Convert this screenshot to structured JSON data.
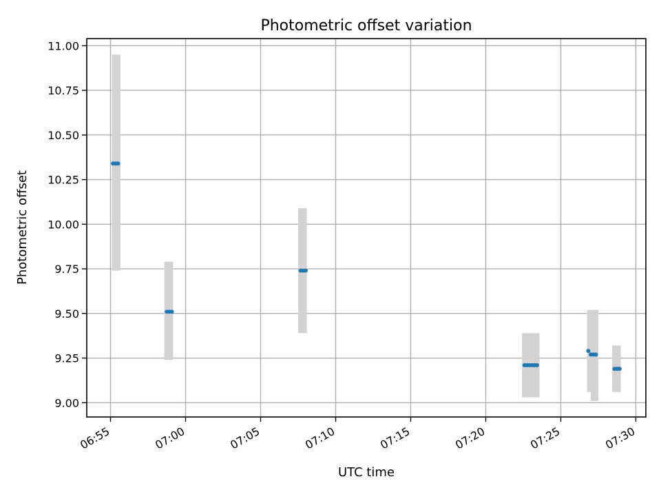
{
  "chart_data": {
    "type": "scatter",
    "title": "Photometric offset variation",
    "xlabel": "UTC time",
    "ylabel": "Photometric offset",
    "grid": true,
    "x_tick_labels": [
      "06:55",
      "07:00",
      "07:05",
      "07:10",
      "07:15",
      "07:20",
      "07:25",
      "07:30"
    ],
    "y_tick_labels": [
      "9.00",
      "9.25",
      "9.50",
      "9.75",
      "10.00",
      "10.25",
      "10.50",
      "10.75",
      "11.00"
    ],
    "xlim": [
      "06:53:25",
      "07:30:40"
    ],
    "ylim": [
      8.92,
      11.04
    ],
    "colors": {
      "points": "#1f77b4",
      "error_bars": "#d3d3d3",
      "grid": "#b0b0b0"
    },
    "error_bars": [
      {
        "x_start": "06:55:05",
        "x_end": "06:55:40",
        "y_low": 9.74,
        "y_high": 10.95
      },
      {
        "x_start": "06:58:35",
        "x_end": "06:59:10",
        "y_low": 9.24,
        "y_high": 9.79
      },
      {
        "x_start": "07:07:30",
        "x_end": "07:08:05",
        "y_low": 9.39,
        "y_high": 10.09
      },
      {
        "x_start": "07:22:25",
        "x_end": "07:23:35",
        "y_low": 9.03,
        "y_high": 9.39
      },
      {
        "x_start": "07:26:45",
        "x_end": "07:27:00",
        "y_low": 9.06,
        "y_high": 9.52
      },
      {
        "x_start": "07:27:00",
        "x_end": "07:27:30",
        "y_low": 9.01,
        "y_high": 9.52
      },
      {
        "x_start": "07:28:25",
        "x_end": "07:29:00",
        "y_low": 9.06,
        "y_high": 9.32
      }
    ],
    "points": [
      {
        "x": "06:55:10",
        "y": 10.34
      },
      {
        "x": "06:55:20",
        "y": 10.34
      },
      {
        "x": "06:55:30",
        "y": 10.34
      },
      {
        "x": "06:58:45",
        "y": 9.51
      },
      {
        "x": "06:58:55",
        "y": 9.51
      },
      {
        "x": "06:59:05",
        "y": 9.51
      },
      {
        "x": "07:07:40",
        "y": 9.74
      },
      {
        "x": "07:07:50",
        "y": 9.74
      },
      {
        "x": "07:08:00",
        "y": 9.74
      },
      {
        "x": "07:22:35",
        "y": 9.21
      },
      {
        "x": "07:22:45",
        "y": 9.21
      },
      {
        "x": "07:22:55",
        "y": 9.21
      },
      {
        "x": "07:23:05",
        "y": 9.21
      },
      {
        "x": "07:23:15",
        "y": 9.21
      },
      {
        "x": "07:23:25",
        "y": 9.21
      },
      {
        "x": "07:26:50",
        "y": 9.29
      },
      {
        "x": "07:27:00",
        "y": 9.27
      },
      {
        "x": "07:27:10",
        "y": 9.27
      },
      {
        "x": "07:27:20",
        "y": 9.27
      },
      {
        "x": "07:28:35",
        "y": 9.19
      },
      {
        "x": "07:28:45",
        "y": 9.19
      },
      {
        "x": "07:28:55",
        "y": 9.19
      }
    ]
  }
}
